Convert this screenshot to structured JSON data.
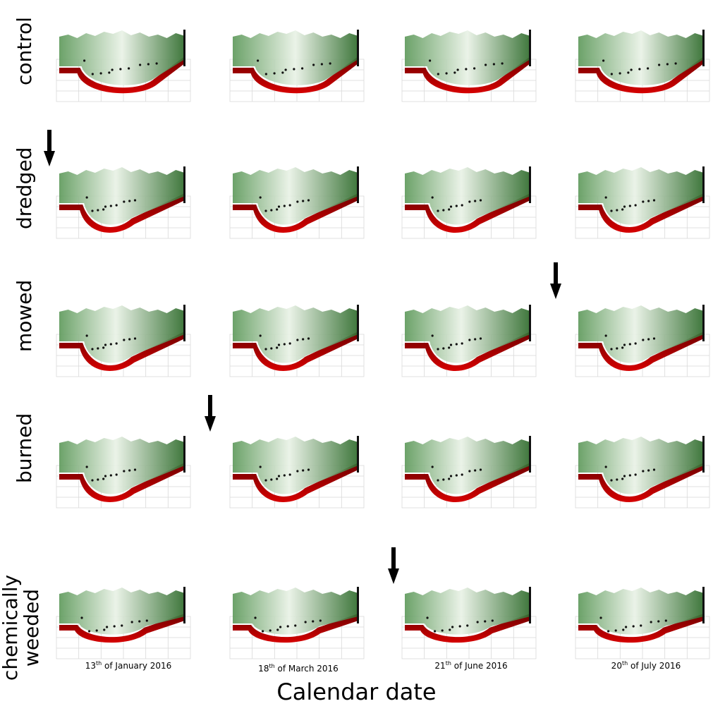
{
  "rows": [
    {
      "label": "control"
    },
    {
      "label": "dredged"
    },
    {
      "label": "mowed"
    },
    {
      "label": "burned"
    },
    {
      "label_line1": "chemically",
      "label_line2": "weeded"
    }
  ],
  "dates": [
    {
      "day": "13",
      "suffix": "th",
      "rest": " of January 2016"
    },
    {
      "day": "18",
      "suffix": "th",
      "rest": " of March 2016"
    },
    {
      "day": "21",
      "suffix": "th",
      "rest": " of June 2016"
    },
    {
      "day": "20",
      "suffix": "th",
      "rest": " of July 2016"
    }
  ],
  "xlabel": "Calendar date",
  "colors": {
    "vegetation_dark": "#2e6b2b",
    "vegetation_mid": "#5f9a5c",
    "vegetation_light": "#e9f2e6",
    "ground": "#d60000",
    "ground_dark": "#6e0000",
    "arrow": "#000000",
    "grid": "#d9d9d9"
  },
  "treatment_arrows": [
    {
      "row": "dredged",
      "marker": "down-arrow"
    },
    {
      "row": "mowed",
      "marker": "down-arrow"
    },
    {
      "row": "burned",
      "marker": "down-arrow"
    },
    {
      "row": "chemically weeded",
      "marker": "down-arrow"
    }
  ]
}
